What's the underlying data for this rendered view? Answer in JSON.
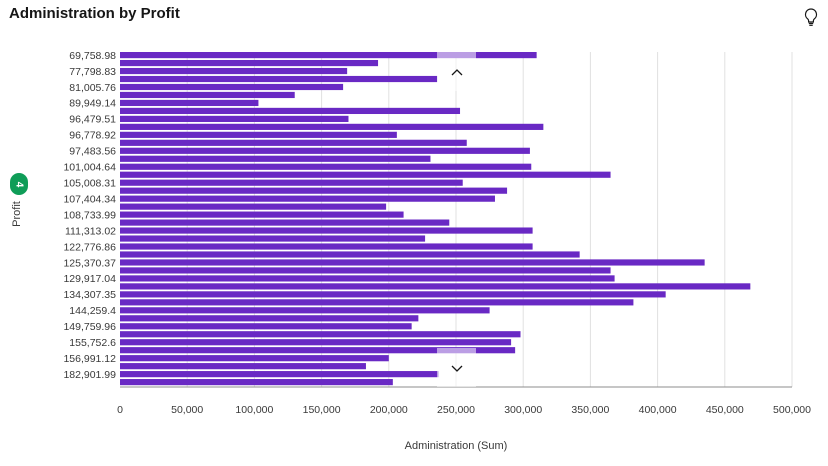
{
  "header": {
    "title": "Administration by Profit",
    "insight_icon": "lightbulb-icon"
  },
  "filter_badge": "4",
  "chart_data": {
    "type": "bar",
    "orientation": "horizontal",
    "title": "Administration by Profit",
    "xlabel": "Administration (Sum)",
    "ylabel": "Profit",
    "xlim": [
      0,
      500000
    ],
    "x_ticks": [
      "0",
      "50,000",
      "100,000",
      "150,000",
      "200,000",
      "250,000",
      "300,000",
      "350,000",
      "400,000",
      "450,000",
      "500,000"
    ],
    "grid": "vertical",
    "color": "#6929c4",
    "scrollable": true,
    "categories": [
      "69,758.98",
      "",
      "77,798.83",
      "",
      "81,005.76",
      "",
      "89,949.14",
      "",
      "96,479.51",
      "",
      "96,778.92",
      "",
      "97,483.56",
      "",
      "101,004.64",
      "",
      "105,008.31",
      "",
      "107,404.34",
      "",
      "108,733.99",
      "",
      "111,313.02",
      "",
      "122,776.86",
      "",
      "125,370.37",
      "",
      "129,917.04",
      "",
      "134,307.35",
      "",
      "144,259.4",
      "",
      "149,759.96",
      "",
      "155,752.6",
      "",
      "156,991.12",
      "",
      "182,901.99",
      ""
    ],
    "values": [
      310000,
      192000,
      169000,
      236000,
      166000,
      130000,
      103000,
      253000,
      170000,
      315000,
      206000,
      258000,
      305000,
      231000,
      306000,
      365000,
      255000,
      288000,
      279000,
      198000,
      211000,
      245000,
      307000,
      227000,
      307000,
      342000,
      435000,
      365000,
      368000,
      469000,
      406000,
      382000,
      275000,
      222000,
      217000,
      298000,
      291000,
      294000,
      200000,
      183000,
      237000,
      203000
    ],
    "scroll_up_icon": "chevron-up-icon",
    "scroll_down_icon": "chevron-down-icon"
  }
}
